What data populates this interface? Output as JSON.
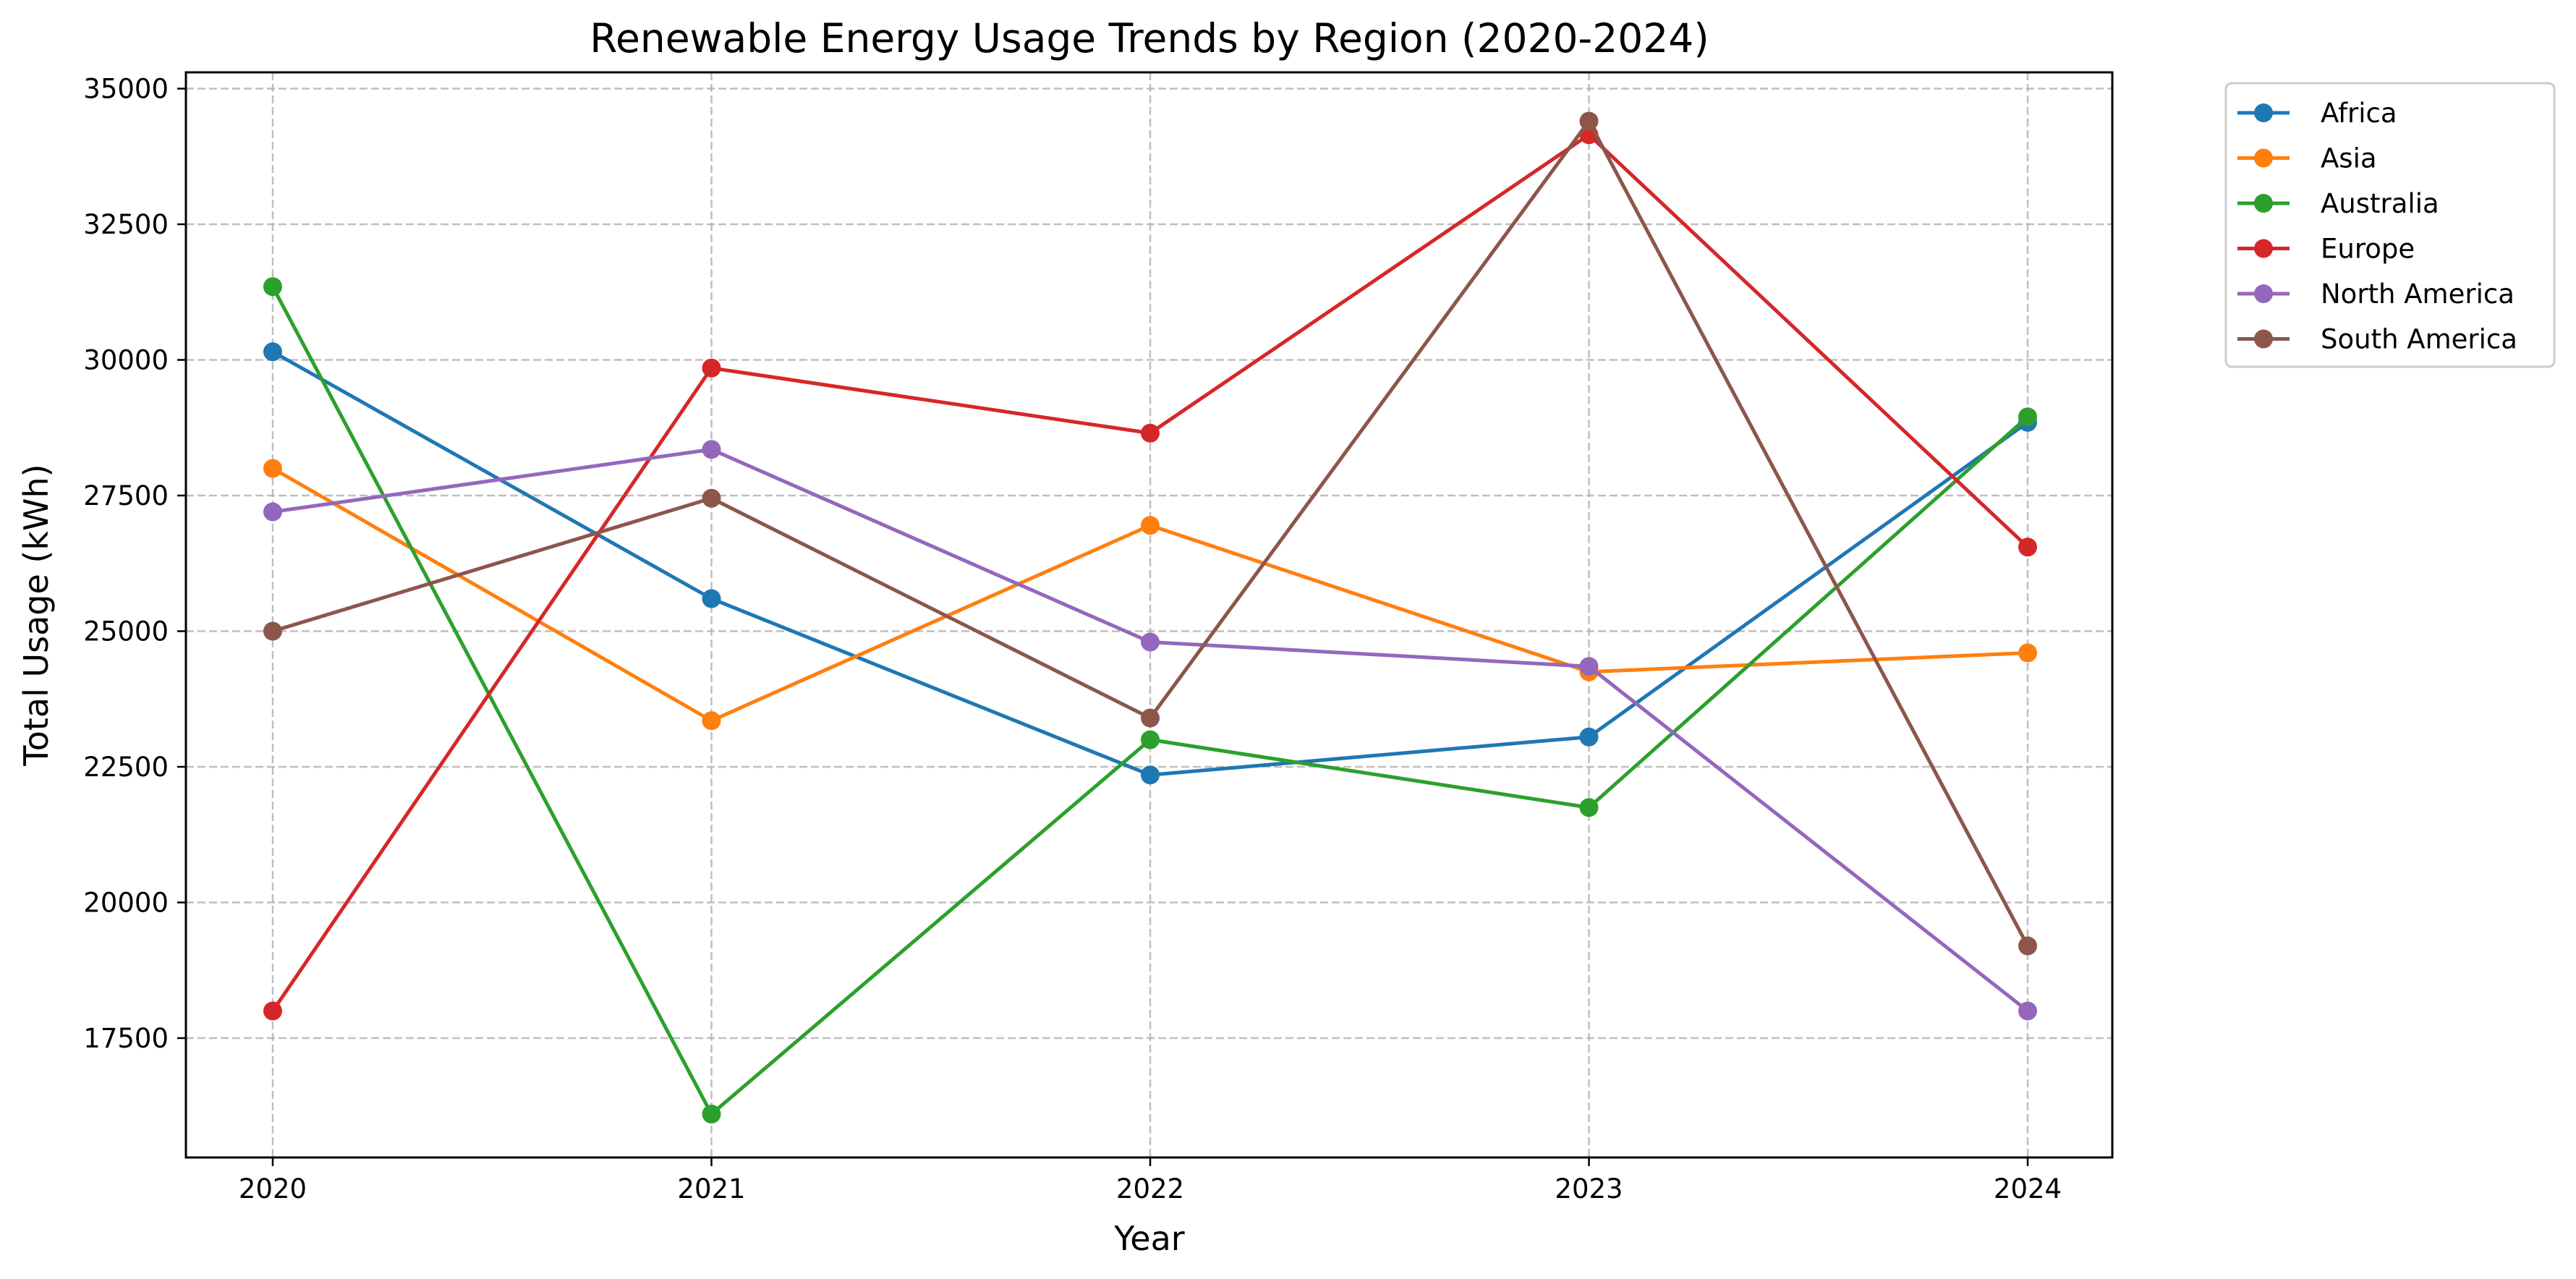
{
  "chart_data": {
    "type": "line",
    "title": "Renewable Energy Usage Trends by Region (2020-2024)",
    "xlabel": "Year",
    "ylabel": "Total Usage (kWh)",
    "categories": [
      "2020",
      "2021",
      "2022",
      "2023",
      "2024"
    ],
    "yticks": [
      "17500",
      "20000",
      "22500",
      "25000",
      "27500",
      "30000",
      "32500",
      "35000"
    ],
    "ylim": [
      15300,
      35300
    ],
    "grid": true,
    "legend_position": "outside top-right",
    "series": [
      {
        "name": "Africa",
        "color": "#1f77b4",
        "values": [
          30150,
          25600,
          22350,
          23050,
          28850
        ]
      },
      {
        "name": "Asia",
        "color": "#ff7f0e",
        "values": [
          28000,
          23350,
          26950,
          24250,
          24600
        ]
      },
      {
        "name": "Australia",
        "color": "#2ca02c",
        "values": [
          31350,
          16100,
          23000,
          21750,
          28950
        ]
      },
      {
        "name": "Europe",
        "color": "#d62728",
        "values": [
          18000,
          29850,
          28650,
          34150,
          26550
        ]
      },
      {
        "name": "North America",
        "color": "#9467bd",
        "values": [
          27200,
          28350,
          24800,
          24350,
          18000
        ]
      },
      {
        "name": "South America",
        "color": "#8c564b",
        "values": [
          25000,
          27450,
          23400,
          34400,
          19200
        ]
      }
    ]
  }
}
